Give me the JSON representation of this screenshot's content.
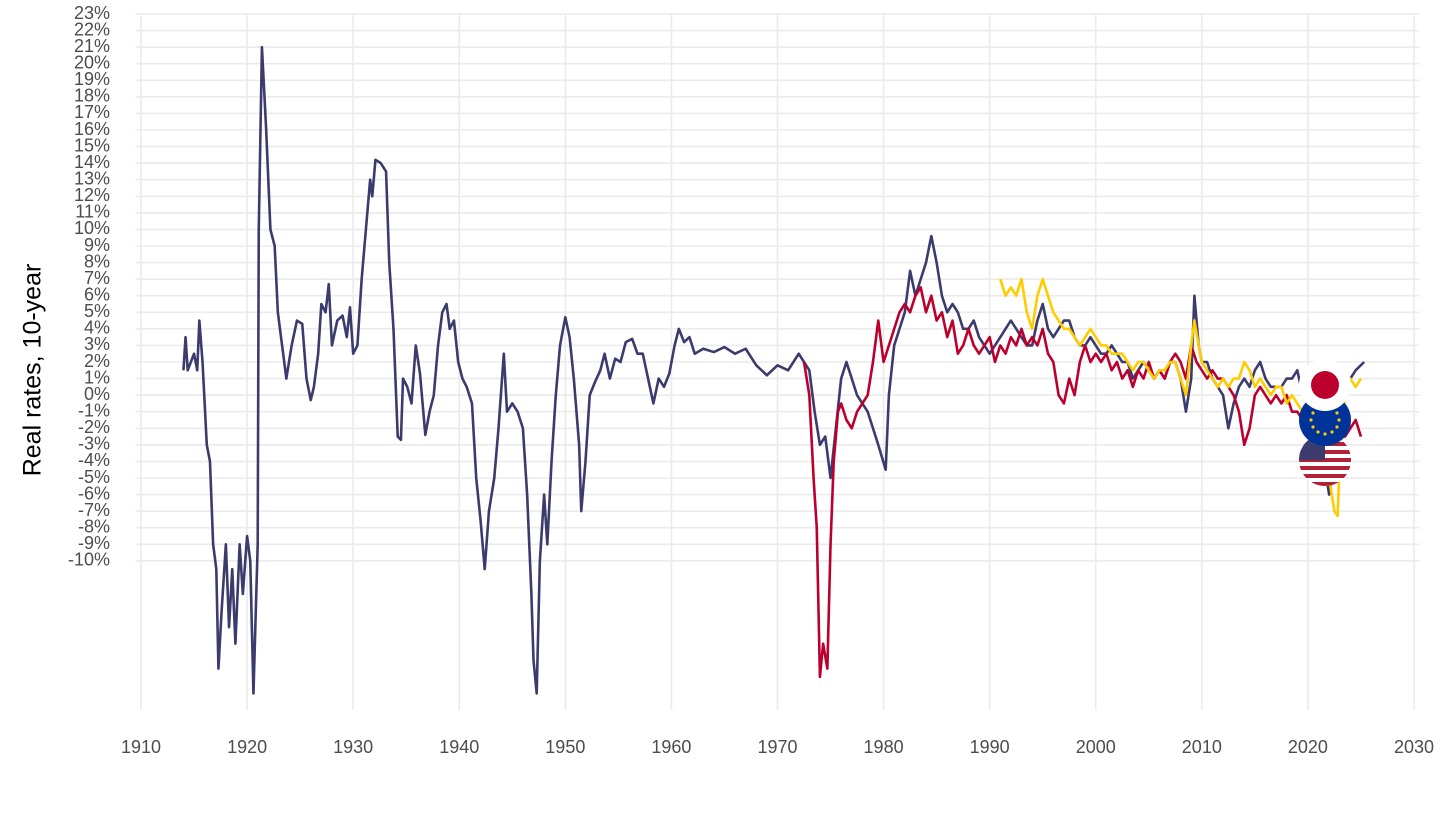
{
  "chart_data": {
    "type": "line",
    "y_label": "Real rates, 10-year",
    "xlim": [
      1909.5,
      2030.5
    ],
    "xticks": [
      1910,
      1920,
      1930,
      1940,
      1950,
      1960,
      1970,
      1980,
      1990,
      2000,
      2010,
      2020,
      2030
    ],
    "ylim": [
      -19,
      23
    ],
    "yticks": [
      {
        "value": 23,
        "label": "23%"
      },
      {
        "value": 22,
        "label": "22%"
      },
      {
        "value": 21,
        "label": "21%"
      },
      {
        "value": 20,
        "label": "20%"
      },
      {
        "value": 19,
        "label": "19%"
      },
      {
        "value": 18,
        "label": "18%"
      },
      {
        "value": 17,
        "label": "17%"
      },
      {
        "value": 16,
        "label": "16%"
      },
      {
        "value": 15,
        "label": "15%"
      },
      {
        "value": 14,
        "label": "14%"
      },
      {
        "value": 13,
        "label": "13%"
      },
      {
        "value": 12,
        "label": "12%"
      },
      {
        "value": 11,
        "label": "11%"
      },
      {
        "value": 10,
        "label": "10%"
      },
      {
        "value": 9,
        "label": "9%"
      },
      {
        "value": 8,
        "label": "8%"
      },
      {
        "value": 7,
        "label": "7%"
      },
      {
        "value": 6,
        "label": "6%"
      },
      {
        "value": 5,
        "label": "5%"
      },
      {
        "value": 4,
        "label": "4%"
      },
      {
        "value": 3,
        "label": "3%"
      },
      {
        "value": 2,
        "label": "2%"
      },
      {
        "value": 1,
        "label": "1%"
      },
      {
        "value": 0,
        "label": "0%"
      },
      {
        "value": -1,
        "label": "-1%"
      },
      {
        "value": -2,
        "label": "-2%"
      },
      {
        "value": -3,
        "label": "-3%"
      },
      {
        "value": -4,
        "label": "-4%"
      },
      {
        "value": -5,
        "label": "-5%"
      },
      {
        "value": -6,
        "label": "-6%"
      },
      {
        "value": -7,
        "label": "-7%"
      },
      {
        "value": -8,
        "label": "-8%"
      },
      {
        "value": -9,
        "label": "-9%"
      },
      {
        "value": -10,
        "label": "-10%"
      }
    ],
    "grid": true,
    "series": [
      {
        "color": "#3c3b6e",
        "x": [
          1914.0,
          1914.2,
          1914.4,
          1915.0,
          1915.3,
          1915.5,
          1915.8,
          1916.2,
          1916.5,
          1916.8,
          1917.1,
          1917.3,
          1917.6,
          1918.0,
          1918.3,
          1918.6,
          1918.9,
          1919.3,
          1919.6,
          1920.0,
          1920.3,
          1920.6,
          1921.0,
          1921.1,
          1921.4,
          1921.8,
          1922.2,
          1922.6,
          1922.9,
          1923.3,
          1923.7,
          1924.2,
          1924.7,
          1925.2,
          1925.6,
          1926.0,
          1926.3,
          1926.7,
          1927.0,
          1927.4,
          1927.7,
          1928.0,
          1928.5,
          1929.0,
          1929.4,
          1929.7,
          1930.0,
          1930.4,
          1930.8,
          1931.2,
          1931.6,
          1931.8,
          1932.1,
          1932.6,
          1933.1,
          1933.4,
          1933.8,
          1934.2,
          1934.5,
          1934.7,
          1935.1,
          1935.5,
          1935.9,
          1936.3,
          1936.8,
          1937.2,
          1937.6,
          1938.0,
          1938.4,
          1938.8,
          1939.1,
          1939.5,
          1939.9,
          1940.3,
          1940.7,
          1941.2,
          1941.6,
          1942.0,
          1942.4,
          1942.8,
          1943.3,
          1943.7,
          1944.2,
          1944.5,
          1945.0,
          1945.5,
          1946.0,
          1946.4,
          1946.8,
          1947.0,
          1947.3,
          1947.6,
          1948.0,
          1948.3,
          1948.7,
          1949.1,
          1949.5,
          1950.0,
          1950.4,
          1950.8,
          1951.3,
          1951.5,
          1951.9,
          1952.3,
          1952.8,
          1953.3,
          1953.7,
          1954.2,
          1954.7,
          1955.2,
          1955.7,
          1956.3,
          1956.8,
          1957.3,
          1957.8,
          1958.3,
          1958.8,
          1959.3,
          1959.8,
          1960.3,
          1960.7,
          1961.2,
          1961.7,
          1962.2,
          1963.0,
          1964.0,
          1965.0,
          1966.0,
          1967.0,
          1968.0,
          1969.0,
          1970.0,
          1971.0,
          1972.0,
          1973.0,
          1973.5,
          1974.0,
          1974.5,
          1975.0,
          1975.5,
          1976.0,
          1976.5,
          1977.0,
          1977.5,
          1978.0,
          1978.5,
          1979.0,
          1979.5,
          1980.2,
          1980.5,
          1981.0,
          1981.5,
          1982.0,
          1982.5,
          1983.0,
          1983.5,
          1984.0,
          1984.5,
          1985.0,
          1985.5,
          1986.0,
          1986.5,
          1987.0,
          1987.5,
          1988.0,
          1988.5,
          1989.0,
          1989.5,
          1990.0,
          1990.5,
          1991.0,
          1991.5,
          1992.0,
          1992.5,
          1993.0,
          1993.5,
          1994.0,
          1994.5,
          1995.0,
          1995.5,
          1996.0,
          1996.5,
          1997.0,
          1997.5,
          1998.0,
          1998.5,
          1999.0,
          1999.5,
          2000.0,
          2000.5,
          2001.0,
          2001.5,
          2002.0,
          2002.5,
          2003.0,
          2003.5,
          2004.0,
          2004.5,
          2005.0,
          2005.5,
          2006.0,
          2006.5,
          2007.0,
          2007.5,
          2008.0,
          2008.5,
          2009.0,
          2009.3,
          2009.7,
          2010.0,
          2010.5,
          2011.0,
          2011.5,
          2012.0,
          2012.5,
          2013.0,
          2013.5,
          2014.0,
          2014.5,
          2015.0,
          2015.5,
          2016.0,
          2016.5,
          2017.0,
          2017.5,
          2018.0,
          2018.5,
          2019.0,
          2019.5,
          2020.0,
          2020.5,
          2021.0,
          2021.5,
          2022.0,
          2022.5,
          2023.0,
          2023.5,
          2024.0,
          2024.5,
          2025.3
        ],
        "values": [
          1.5,
          3.5,
          1.5,
          2.5,
          1.5,
          4.5,
          2,
          -3,
          -4,
          -9,
          -10.5,
          -16.5,
          -13,
          -9,
          -14,
          -10.5,
          -15,
          -9,
          -12,
          -8.5,
          -10,
          -18,
          -9,
          10,
          21,
          16,
          10,
          9,
          5,
          3,
          1,
          3,
          4.5,
          4.3,
          1,
          -0.3,
          0.5,
          2.5,
          5.5,
          5,
          6.7,
          3,
          4.5,
          4.8,
          3.5,
          5.3,
          2.5,
          3,
          7,
          10,
          13,
          12,
          14.2,
          14,
          13.5,
          8,
          4,
          -2.5,
          -2.7,
          1,
          0.5,
          -0.5,
          3,
          1.3,
          -2.4,
          -1,
          0,
          3,
          5,
          5.5,
          4,
          4.5,
          2,
          1,
          0.5,
          -0.5,
          -5,
          -7.5,
          -10.5,
          -7,
          -5,
          -2,
          2.5,
          -1,
          -0.5,
          -1,
          -2,
          -6,
          -12,
          -16,
          -18,
          -10,
          -6,
          -9,
          -4,
          0,
          3,
          4.7,
          3.5,
          1,
          -3,
          -7,
          -4,
          0,
          0.8,
          1.5,
          2.5,
          1,
          2.2,
          2,
          3.2,
          3.4,
          2.5,
          2.5,
          1,
          -0.5,
          1,
          0.5,
          1.3,
          3,
          4,
          3.2,
          3.5,
          2.5,
          2.8,
          2.6,
          2.9,
          2.5,
          2.8,
          1.8,
          1.2,
          1.8,
          1.5,
          2.5,
          1.5,
          -1,
          -3,
          -2.5,
          -5,
          -2,
          1,
          2,
          1,
          0,
          -0.5,
          -1,
          -2,
          -3,
          -4.5,
          0,
          3,
          4,
          5,
          7.5,
          6,
          7,
          8,
          9.6,
          8,
          6,
          5,
          5.5,
          5,
          4,
          4,
          4.5,
          3.5,
          3,
          2.5,
          3,
          3.5,
          4,
          4.5,
          4,
          3.5,
          3,
          3,
          4.5,
          5.5,
          4,
          3.5,
          4,
          4.5,
          4.5,
          3.5,
          3,
          3,
          3.5,
          3,
          2.5,
          2.5,
          3,
          2.5,
          2,
          2,
          1,
          1.5,
          2,
          1.5,
          1,
          1.5,
          1,
          2,
          2,
          1,
          -1,
          1,
          6,
          3,
          2,
          2,
          1,
          0.5,
          0,
          -2,
          -0.5,
          0.5,
          1,
          0.5,
          1.5,
          2,
          1,
          0.5,
          0.5,
          0.5,
          1,
          1,
          1.5,
          0,
          -0.5,
          -1,
          -2.5,
          -4,
          -6,
          -4,
          -1,
          0,
          1,
          1.5,
          2
        ]
      },
      {
        "color": "#bc002d",
        "x": [
          1972.5,
          1973.0,
          1973.4,
          1973.7,
          1974.0,
          1974.3,
          1974.7,
          1975.0,
          1975.3,
          1975.7,
          1976.0,
          1976.5,
          1977.0,
          1977.5,
          1978.0,
          1978.5,
          1979.0,
          1979.5,
          1980.0,
          1980.5,
          1981.0,
          1981.5,
          1982.0,
          1982.5,
          1983.0,
          1983.5,
          1984.0,
          1984.5,
          1985.0,
          1985.5,
          1986.0,
          1986.5,
          1987.0,
          1987.5,
          1988.0,
          1988.5,
          1989.0,
          1989.5,
          1990.0,
          1990.5,
          1991.0,
          1991.5,
          1992.0,
          1992.5,
          1993.0,
          1993.5,
          1994.0,
          1994.5,
          1995.0,
          1995.5,
          1996.0,
          1996.5,
          1997.0,
          1997.5,
          1998.0,
          1998.5,
          1999.0,
          1999.5,
          2000.0,
          2000.5,
          2001.0,
          2001.5,
          2002.0,
          2002.5,
          2003.0,
          2003.5,
          2004.0,
          2004.5,
          2005.0,
          2005.5,
          2006.0,
          2006.5,
          2007.0,
          2007.5,
          2008.0,
          2008.5,
          2009.0,
          2009.5,
          2010.0,
          2010.5,
          2011.0,
          2011.5,
          2012.0,
          2012.5,
          2013.0,
          2013.5,
          2014.0,
          2014.5,
          2015.0,
          2015.5,
          2016.0,
          2016.5,
          2017.0,
          2017.5,
          2018.0,
          2018.5,
          2019.0,
          2019.5,
          2020.0,
          2020.5,
          2021.0,
          2021.5,
          2022.0,
          2022.5,
          2023.0,
          2023.5,
          2024.0,
          2024.5,
          2025.0
        ],
        "values": [
          2,
          0,
          -5,
          -8,
          -17,
          -15,
          -16.5,
          -9,
          -4,
          -1,
          -0.5,
          -1.5,
          -2,
          -1,
          -0.5,
          0,
          2,
          4.5,
          2,
          3,
          4,
          5,
          5.5,
          5,
          6,
          6.5,
          5,
          6,
          4.5,
          5,
          3.5,
          4.5,
          2.5,
          3,
          4,
          3,
          2.5,
          3,
          3.5,
          2,
          3,
          2.5,
          3.5,
          3,
          4,
          3,
          3.5,
          3,
          4,
          2.5,
          2,
          0,
          -0.5,
          1,
          0,
          2,
          3,
          2,
          2.5,
          2,
          2.5,
          1.5,
          2,
          1,
          1.5,
          0.5,
          1.5,
          1,
          2,
          1,
          1.5,
          1,
          2,
          2.5,
          2,
          1,
          3,
          2,
          1.5,
          1,
          1.5,
          1,
          1,
          0.5,
          0,
          -1,
          -3,
          -2,
          0,
          0.5,
          0,
          -0.5,
          0,
          -0.5,
          0,
          -1,
          -1,
          -1.5,
          -0.5,
          -1,
          -0.5,
          -1,
          -2,
          -3,
          -2,
          -2.5,
          -2,
          -1.5,
          -2.5
        ]
      },
      {
        "color": "#ffcc00",
        "x": [
          1991.0,
          1991.5,
          1992.0,
          1992.5,
          1993.0,
          1993.5,
          1994.0,
          1994.5,
          1995.0,
          1995.5,
          1996.0,
          1996.5,
          1997.0,
          1997.5,
          1998.0,
          1998.5,
          1999.0,
          1999.5,
          2000.0,
          2000.5,
          2001.0,
          2001.5,
          2002.0,
          2002.5,
          2003.0,
          2003.5,
          2004.0,
          2004.5,
          2005.0,
          2005.5,
          2006.0,
          2006.5,
          2007.0,
          2007.5,
          2008.0,
          2008.5,
          2009.0,
          2009.3,
          2009.7,
          2010.0,
          2010.5,
          2011.0,
          2011.5,
          2012.0,
          2012.5,
          2013.0,
          2013.5,
          2014.0,
          2014.5,
          2015.0,
          2015.5,
          2016.0,
          2016.5,
          2017.0,
          2017.5,
          2018.0,
          2018.5,
          2019.0,
          2019.5,
          2020.0,
          2020.5,
          2021.0,
          2021.5,
          2022.0,
          2022.5,
          2022.8,
          2023.0,
          2023.5,
          2024.0,
          2024.5,
          2025.0
        ],
        "values": [
          7,
          6,
          6.5,
          6,
          7,
          5,
          4,
          6,
          7,
          6,
          5,
          4.5,
          4,
          4,
          3.5,
          3,
          3.5,
          4,
          3.5,
          3,
          3,
          2.5,
          2.5,
          2.5,
          2,
          1.5,
          2,
          2,
          1.5,
          1,
          1.5,
          1.5,
          2,
          2,
          1,
          0,
          3,
          4.5,
          3,
          2,
          1.5,
          1,
          0.5,
          1,
          0.5,
          1,
          1,
          2,
          1.5,
          0.5,
          1,
          0.5,
          0,
          0.5,
          0.5,
          -0.5,
          0,
          -0.5,
          -1,
          -1,
          -1.5,
          -2,
          -3,
          -5,
          -7,
          -7.3,
          -4,
          0,
          1,
          0.5,
          1
        ]
      }
    ]
  }
}
